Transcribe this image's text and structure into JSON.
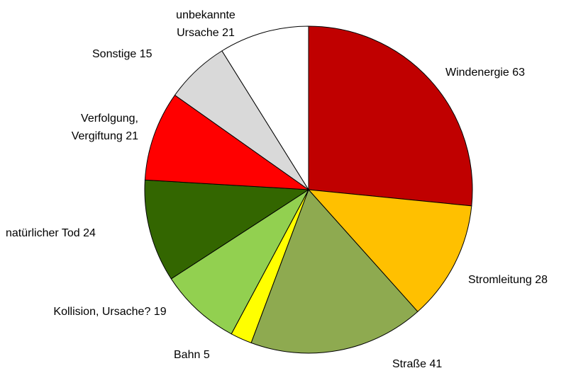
{
  "chart_data": {
    "type": "pie",
    "categories": [
      "Windenergie",
      "Stromleitung",
      "Straße",
      "Bahn",
      "Kollision, Ursache?",
      "natürlicher Tod",
      "Verfolgung, Vergiftung",
      "Sonstige",
      "unbekannte Ursache"
    ],
    "values": [
      63,
      28,
      41,
      5,
      19,
      24,
      21,
      15,
      21
    ],
    "colors": [
      "#c00000",
      "#ffc000",
      "#8eaa50",
      "#ffff00",
      "#92d050",
      "#336600",
      "#ff0000",
      "#d9d9d9",
      "#ffffff"
    ]
  }
}
